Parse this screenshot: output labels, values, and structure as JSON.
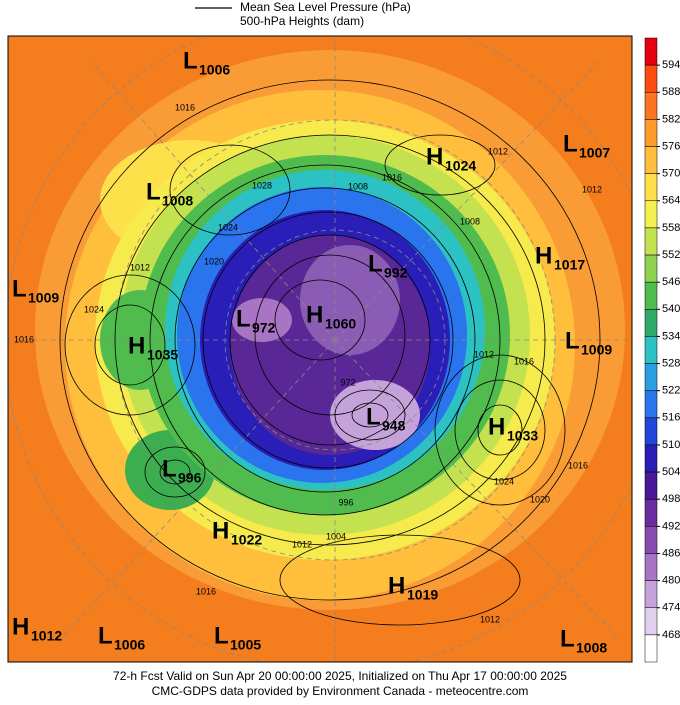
{
  "legend": {
    "items": [
      "Mean Sea Level Pressure (hPa)",
      "500-hPa Heights (dam)"
    ]
  },
  "colorbar": {
    "levels": [
      594,
      588,
      582,
      576,
      570,
      564,
      558,
      552,
      546,
      540,
      534,
      528,
      522,
      516,
      510,
      504,
      498,
      492,
      486,
      480,
      474,
      468
    ],
    "colors": [
      "#e50012",
      "#ff4a12",
      "#ff7420",
      "#ff9a2c",
      "#ffbe3c",
      "#ffde48",
      "#f4f050",
      "#c4e250",
      "#8ed250",
      "#50bc4e",
      "#30aa6a",
      "#2cc2c4",
      "#2aa0e4",
      "#2a74ee",
      "#2246da",
      "#2a1eb8",
      "#481896",
      "#6a2c9e",
      "#8a4cb0",
      "#a874c4",
      "#c6a2da",
      "#e2d0ee",
      "#ffffff"
    ]
  },
  "centers": [
    {
      "type": "L",
      "value": "1006"
    },
    {
      "type": "H",
      "value": "1024"
    },
    {
      "type": "L",
      "value": "1007"
    },
    {
      "type": "L",
      "value": "1008"
    },
    {
      "type": "H",
      "value": "1017"
    },
    {
      "type": "L",
      "value": "1009"
    },
    {
      "type": "L",
      "value": "992"
    },
    {
      "type": "L",
      "value": "972"
    },
    {
      "type": "H",
      "value": "1060"
    },
    {
      "type": "H",
      "value": "1035"
    },
    {
      "type": "L",
      "value": "1009"
    },
    {
      "type": "L",
      "value": "948"
    },
    {
      "type": "H",
      "value": "1033"
    },
    {
      "type": "L",
      "value": "996"
    },
    {
      "type": "H",
      "value": "1022"
    },
    {
      "type": "H",
      "value": "1019"
    },
    {
      "type": "H",
      "value": "1012"
    },
    {
      "type": "L",
      "value": "1006"
    },
    {
      "type": "L",
      "value": "1005"
    },
    {
      "type": "L",
      "value": "1008"
    }
  ],
  "contour_labels": [
    "1016",
    "1012",
    "1016",
    "1008",
    "1028",
    "1024",
    "1020",
    "1012",
    "1024",
    "1016",
    "1012",
    "1016",
    "1024",
    "1020",
    "1016",
    "1012",
    "1004",
    "1016",
    "1012",
    "1012",
    "1008",
    "972",
    "996"
  ],
  "footer": {
    "line1": "72-h Fcst Valid on Sun Apr 20 00:00:00 2025, Initialized on Thu Apr 17 00:00:00 2025",
    "line2": "CMC-GDPS data provided by Environment Canada - meteocentre.com"
  }
}
